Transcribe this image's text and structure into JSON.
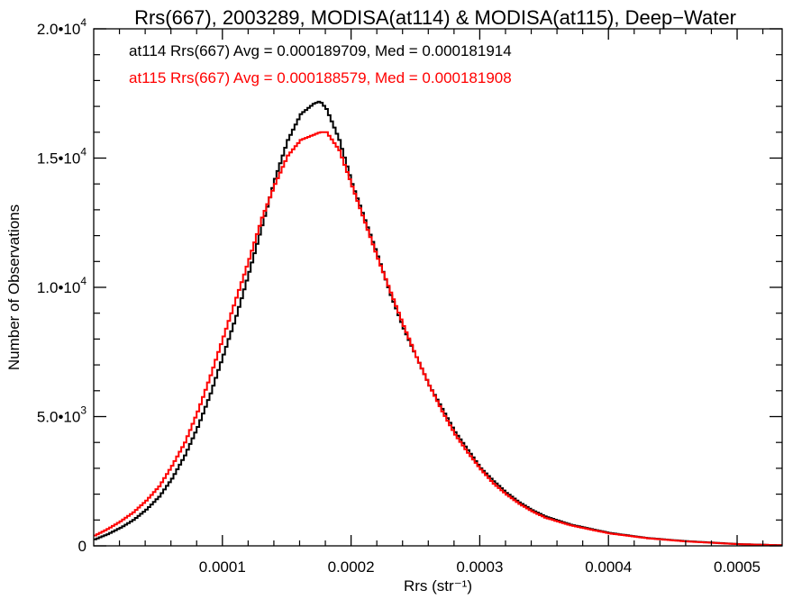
{
  "chart_data": {
    "type": "line",
    "title": "Rrs(667), 2003289, MODISA(at114) & MODISA(at115), Deep−Water",
    "xlabel": "Rrs (str⁻¹)",
    "ylabel": "Number of Observations",
    "xlim": [
      0.0,
      0.000535
    ],
    "ylim": [
      0,
      20000
    ],
    "x_ticks": [
      {
        "value": 0.0001,
        "label": "0.0001"
      },
      {
        "value": 0.0002,
        "label": "0.0002"
      },
      {
        "value": 0.0003,
        "label": "0.0003"
      },
      {
        "value": 0.0004,
        "label": "0.0004"
      },
      {
        "value": 0.0005,
        "label": "0.0005"
      }
    ],
    "y_ticks": [
      {
        "value": 0,
        "mantissa": "0",
        "exponent": ""
      },
      {
        "value": 5000,
        "mantissa": "5.0•10",
        "exponent": "3"
      },
      {
        "value": 10000,
        "mantissa": "1.0•10",
        "exponent": "4"
      },
      {
        "value": 15000,
        "mantissa": "1.5•10",
        "exponent": "4"
      },
      {
        "value": 20000,
        "mantissa": "2.0•10",
        "exponent": "4"
      }
    ],
    "annotations": [
      "at114 Rrs(667) Avg = 0.000189709, Med = 0.000181914",
      "at115 Rrs(667) Avg = 0.000188579, Med = 0.000181908"
    ],
    "series": [
      {
        "color": "#000000",
        "x": [
          0.0,
          1e-05,
          2e-05,
          3e-05,
          4e-05,
          5e-05,
          6e-05,
          7e-05,
          8e-05,
          9e-05,
          0.0001,
          0.00011,
          0.00012,
          0.00013,
          0.00014,
          0.00015,
          0.00016,
          0.00017,
          0.000175,
          0.00018,
          0.00019,
          0.0002,
          0.00021,
          0.00022,
          0.00023,
          0.00024,
          0.00025,
          0.00026,
          0.00027,
          0.00028,
          0.00029,
          0.0003,
          0.00031,
          0.00032,
          0.00033,
          0.00034,
          0.00035,
          0.00037,
          0.0004,
          0.00043,
          0.00046,
          0.0005,
          0.000535
        ],
        "y": [
          250,
          450,
          700,
          1000,
          1400,
          1900,
          2600,
          3500,
          4600,
          5900,
          7400,
          8900,
          10600,
          12400,
          14200,
          15700,
          16700,
          17100,
          17200,
          16900,
          15700,
          14000,
          12600,
          11200,
          9700,
          8400,
          7300,
          6200,
          5300,
          4400,
          3700,
          3000,
          2500,
          2050,
          1680,
          1380,
          1140,
          820,
          500,
          300,
          180,
          70,
          20
        ]
      },
      {
        "color": "#ff0000",
        "x": [
          0.0,
          1e-05,
          2e-05,
          3e-05,
          4e-05,
          5e-05,
          6e-05,
          7e-05,
          8e-05,
          9e-05,
          0.0001,
          0.00011,
          0.00012,
          0.00013,
          0.00014,
          0.00015,
          0.00016,
          0.00017,
          0.000175,
          0.00018,
          0.00019,
          0.0002,
          0.00021,
          0.00022,
          0.00023,
          0.00024,
          0.00025,
          0.00026,
          0.00027,
          0.00028,
          0.00029,
          0.0003,
          0.00031,
          0.00032,
          0.00033,
          0.00034,
          0.00035,
          0.00037,
          0.0004,
          0.00043,
          0.00046,
          0.0005,
          0.000535
        ],
        "y": [
          400,
          650,
          950,
          1300,
          1750,
          2300,
          3100,
          4000,
          5200,
          6600,
          8100,
          9600,
          11100,
          12700,
          14000,
          15100,
          15700,
          15900,
          16000,
          16000,
          15300,
          13900,
          12500,
          11100,
          9800,
          8500,
          7300,
          6200,
          5200,
          4300,
          3600,
          2950,
          2400,
          1980,
          1620,
          1330,
          1090,
          790,
          480,
          290,
          170,
          65,
          20
        ]
      }
    ]
  }
}
